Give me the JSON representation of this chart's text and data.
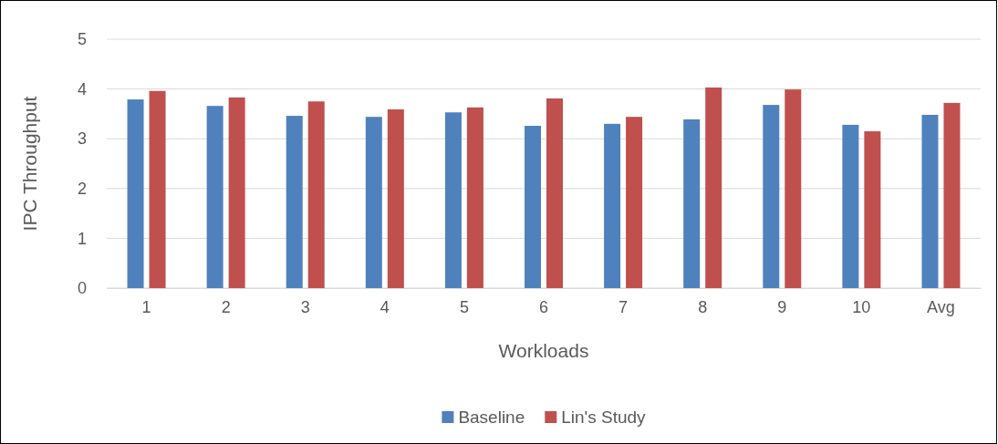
{
  "chart_data": {
    "type": "bar",
    "xlabel": "Workloads",
    "ylabel": "IPC Throughput",
    "categories": [
      "1",
      "2",
      "3",
      "4",
      "5",
      "6",
      "7",
      "8",
      "9",
      "10",
      "Avg"
    ],
    "series": [
      {
        "name": "Baseline",
        "color": "#4f81bd",
        "values": [
          3.79,
          3.66,
          3.46,
          3.44,
          3.53,
          3.26,
          3.3,
          3.39,
          3.68,
          3.28,
          3.48
        ]
      },
      {
        "name": "Lin's Study",
        "color": "#c0504d",
        "values": [
          3.96,
          3.83,
          3.75,
          3.59,
          3.63,
          3.81,
          3.44,
          4.03,
          3.99,
          3.15,
          3.72
        ]
      }
    ],
    "ylim": [
      0,
      5
    ],
    "yticks": [
      0,
      1,
      2,
      3,
      4,
      5
    ],
    "grid": "y",
    "legend": "bottom"
  }
}
